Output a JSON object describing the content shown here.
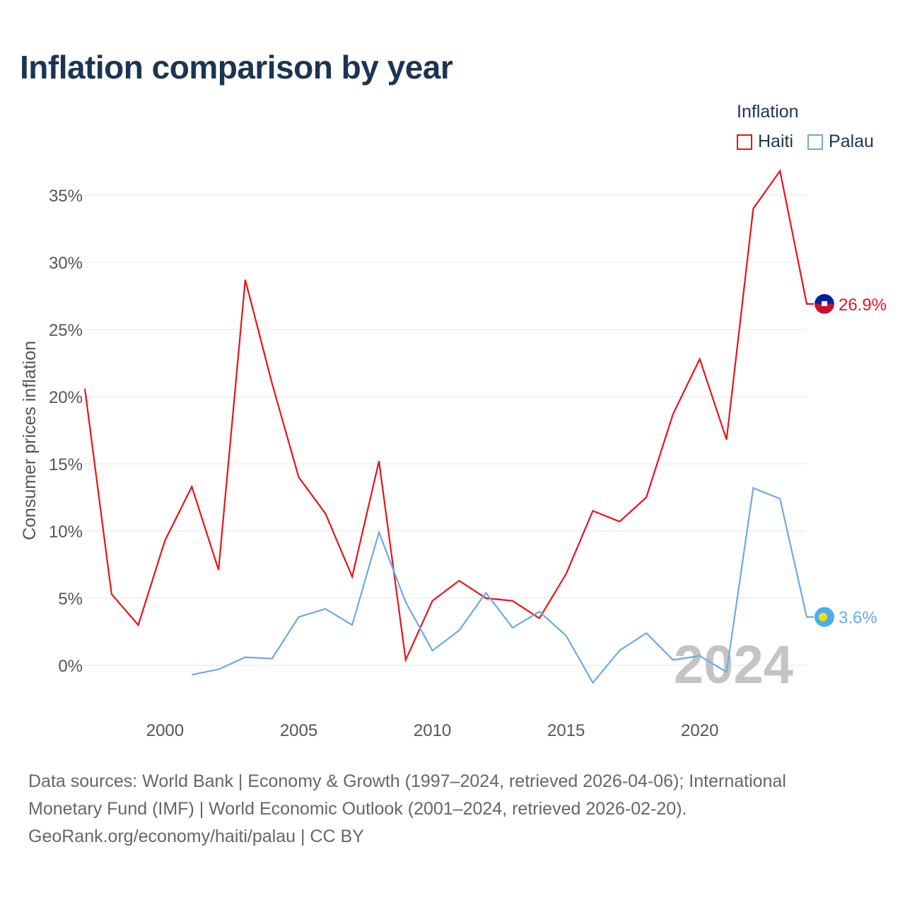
{
  "title": "Inflation comparison by year",
  "legend": {
    "title": "Inflation",
    "items": [
      {
        "label": "Haiti",
        "color": "#e8131b"
      },
      {
        "label": "Palau",
        "color": "#6aabe6"
      }
    ]
  },
  "watermark_year": "2024",
  "sources": {
    "line1": "Data sources: World Bank | Economy & Growth (1997–2024, retrieved 2026-04-06); International",
    "line2": "Monetary Fund (IMF) | World Economic Outlook (2001–2024, retrieved 2026-02-20).",
    "line3": "GeoRank.org/economy/haiti/palau | CC BY"
  },
  "chart_data": {
    "type": "line",
    "title": "Inflation comparison by year",
    "xlabel": "",
    "ylabel": "Consumer prices inflation",
    "xlim": [
      1997,
      2024
    ],
    "ylim": [
      -4,
      37
    ],
    "yticks": [
      0,
      5,
      10,
      15,
      20,
      25,
      30,
      35
    ],
    "ytick_labels": [
      "0%",
      "5%",
      "10%",
      "15%",
      "20%",
      "25%",
      "30%",
      "35%"
    ],
    "xticks": [
      2000,
      2005,
      2010,
      2015,
      2020
    ],
    "xtick_labels": [
      "2000",
      "2005",
      "2010",
      "2015",
      "2020"
    ],
    "grid": true,
    "series": [
      {
        "name": "Haiti",
        "color": "#e8131b",
        "end_label": "26.9%",
        "x": [
          1997,
          1998,
          1999,
          2000,
          2001,
          2002,
          2003,
          2004,
          2005,
          2006,
          2007,
          2008,
          2009,
          2010,
          2011,
          2012,
          2013,
          2014,
          2015,
          2016,
          2017,
          2018,
          2019,
          2020,
          2021,
          2022,
          2023,
          2024
        ],
        "values": [
          20.6,
          5.3,
          3.0,
          9.3,
          13.3,
          7.1,
          28.7,
          21.0,
          14.0,
          11.3,
          6.6,
          15.2,
          0.4,
          4.8,
          6.3,
          5.0,
          4.8,
          3.5,
          6.8,
          11.5,
          10.7,
          12.5,
          18.7,
          22.8,
          16.8,
          34.0,
          36.8,
          26.9
        ]
      },
      {
        "name": "Palau",
        "color": "#6aabe6",
        "end_label": "3.6%",
        "x": [
          2001,
          2002,
          2003,
          2004,
          2005,
          2006,
          2007,
          2008,
          2009,
          2010,
          2011,
          2012,
          2013,
          2014,
          2015,
          2016,
          2017,
          2018,
          2019,
          2020,
          2021,
          2022,
          2023,
          2024
        ],
        "values": [
          -0.7,
          -0.3,
          0.6,
          0.5,
          3.6,
          4.2,
          3.0,
          9.9,
          4.7,
          1.1,
          2.6,
          5.4,
          2.8,
          4.0,
          2.2,
          -1.3,
          1.1,
          2.4,
          0.4,
          0.7,
          -0.5,
          13.2,
          12.4,
          3.6
        ]
      }
    ]
  }
}
